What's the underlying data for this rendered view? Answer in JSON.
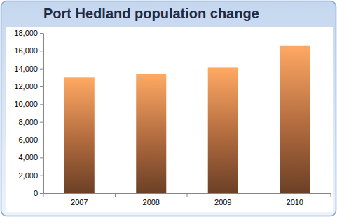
{
  "chart_data": {
    "type": "bar",
    "title": "Port Hedland population change",
    "categories": [
      "2007",
      "2008",
      "2009",
      "2010"
    ],
    "values": [
      13000,
      13400,
      14100,
      16600
    ],
    "color": "#b06a3e",
    "ylim": [
      0,
      18000
    ],
    "yticks": [
      0,
      {
        "value": 2000,
        "label": "2,000"
      },
      {
        "value": 4000,
        "label": "4,000"
      },
      {
        "value": 6000,
        "label": "6,000"
      },
      {
        "value": 8000,
        "label": "8,000"
      },
      {
        "value": 10000,
        "label": "10,000"
      },
      {
        "value": 12000,
        "label": "12,000"
      },
      {
        "value": 14000,
        "label": "14,000"
      },
      {
        "value": 16000,
        "label": "16,000"
      },
      {
        "value": 18000,
        "label": "18,000"
      }
    ],
    "grid": false
  }
}
